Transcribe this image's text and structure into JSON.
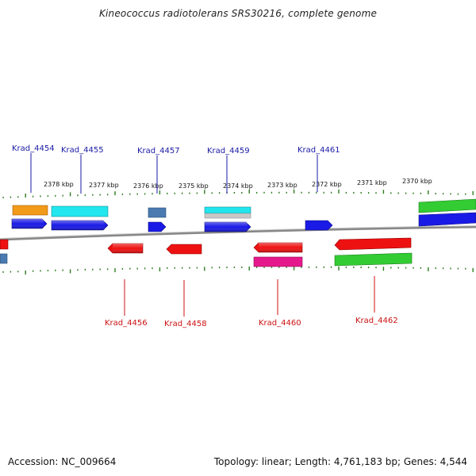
{
  "title": "Kineococcus radiotolerans SRS30216, complete genome",
  "footer": {
    "accession": "Accession: NC_009664",
    "stats": "Topology: linear; Length: 4,761,183 bp; Genes: 4,544"
  },
  "colors": {
    "backbone": "#888888",
    "tick": "#2e7d1f",
    "upper_label": "#1a1aa6",
    "lower_label": "#cc1111",
    "blue": "#1a1ae6",
    "red": "#ee1111",
    "cyan": "#22e6ee",
    "green": "#33cc33",
    "orange": "#f29a1a",
    "steel": "#4a7ab0",
    "magenta": "#e6198c",
    "gray": "#c8c8c8"
  },
  "scale": {
    "unit": "kbp",
    "ticks": [
      {
        "label": "2378 kbp",
        "kbp": 2378
      },
      {
        "label": "2377 kbp",
        "kbp": 2377
      },
      {
        "label": "2376 kbp",
        "kbp": 2376
      },
      {
        "label": "2375 kbp",
        "kbp": 2375
      },
      {
        "label": "2374 kbp",
        "kbp": 2374
      },
      {
        "label": "2373 kbp",
        "kbp": 2373
      },
      {
        "label": "2372 kbp",
        "kbp": 2372
      },
      {
        "label": "2371 kbp",
        "kbp": 2371
      },
      {
        "label": "2370 kbp",
        "kbp": 2370
      }
    ]
  },
  "upper_labels": [
    "Krad_4454",
    "Krad_4455",
    "Krad_4457",
    "Krad_4459",
    "Krad_4461"
  ],
  "lower_labels": [
    "Krad_4456",
    "Krad_4458",
    "Krad_4460",
    "Krad_4462"
  ]
}
